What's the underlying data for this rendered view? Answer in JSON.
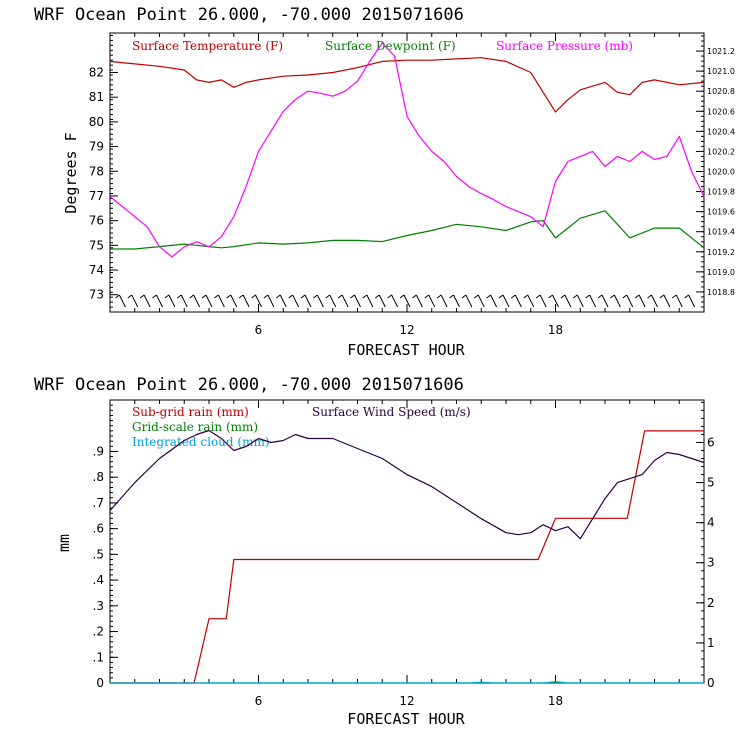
{
  "chart_data": [
    {
      "type": "line",
      "title": "WRF   Ocean Point   26.000, -70.000  2015071606",
      "xlabel": "FORECAST HOUR",
      "ylabel": "Degrees F",
      "xlim": [
        0,
        24
      ],
      "x_ticks": [
        "6",
        "12",
        "18"
      ],
      "ylim": [
        72.3,
        83.6
      ],
      "y_ticks": [
        "73",
        "74",
        "75",
        "76",
        "77",
        "78",
        "79",
        "80",
        "81",
        "82"
      ],
      "y2lim": [
        1018.6,
        1021.38
      ],
      "y2_ticks": [
        "1018.8",
        "1019.0",
        "1019.2",
        "1019.4",
        "1019.6",
        "1019.8",
        "1020.0",
        "1020.2",
        "1020.4",
        "1020.6",
        "1020.8",
        "1021.0",
        "1021.2"
      ],
      "series": [
        {
          "name": "Surface Temperature (F)",
          "axis": "left",
          "color": "#c00000",
          "x": [
            0,
            1,
            2,
            3,
            3.5,
            4,
            4.5,
            5,
            5.5,
            6,
            7,
            8,
            9,
            10,
            11,
            12,
            13,
            14,
            15,
            16,
            17,
            17.5,
            18,
            18.5,
            19,
            20,
            20.5,
            21,
            21.5,
            22,
            23,
            24
          ],
          "y": [
            82.45,
            82.35,
            82.25,
            82.1,
            81.7,
            81.6,
            81.7,
            81.4,
            81.6,
            81.7,
            81.85,
            81.9,
            82.0,
            82.2,
            82.45,
            82.5,
            82.5,
            82.55,
            82.6,
            82.45,
            82.0,
            81.2,
            80.4,
            80.9,
            81.3,
            81.6,
            81.2,
            81.1,
            81.6,
            81.7,
            81.5,
            81.6
          ]
        },
        {
          "name": "Surface Dewpoint (F)",
          "axis": "left",
          "color": "#008000",
          "x": [
            0,
            1,
            2,
            3,
            3.5,
            4,
            4.5,
            5,
            6,
            7,
            8,
            9,
            10,
            11,
            12,
            13,
            14,
            15,
            16,
            17,
            17.5,
            18,
            18.5,
            19,
            20,
            21,
            22,
            23,
            24
          ],
          "y": [
            74.85,
            74.85,
            74.95,
            75.05,
            75.0,
            74.95,
            74.9,
            74.95,
            75.1,
            75.05,
            75.1,
            75.2,
            75.2,
            75.15,
            75.4,
            75.6,
            75.85,
            75.75,
            75.6,
            75.95,
            76.0,
            75.3,
            75.7,
            76.1,
            76.4,
            75.3,
            75.7,
            75.7,
            74.9
          ]
        },
        {
          "name": "Surface Pressure (mb)",
          "axis": "right",
          "color": "#ff00ff",
          "x": [
            0,
            0.5,
            1,
            1.5,
            2,
            2.5,
            3,
            3.5,
            4,
            4.5,
            5,
            5.5,
            6,
            7,
            7.5,
            8,
            8.5,
            9,
            9.5,
            10,
            10.5,
            11,
            11.5,
            12,
            12.5,
            13,
            13.5,
            14,
            14.5,
            15,
            15.5,
            16,
            16.5,
            17,
            17.5,
            18,
            18.5,
            19,
            19.5,
            20,
            20.5,
            21,
            21.5,
            22,
            22.5,
            23,
            23.5,
            24
          ],
          "y": [
            1019.75,
            1019.65,
            1019.55,
            1019.45,
            1019.25,
            1019.15,
            1019.25,
            1019.3,
            1019.25,
            1019.35,
            1019.55,
            1019.85,
            1020.2,
            1020.6,
            1020.72,
            1020.8,
            1020.78,
            1020.75,
            1020.8,
            1020.9,
            1021.1,
            1021.28,
            1021.15,
            1020.55,
            1020.35,
            1020.2,
            1020.1,
            1019.95,
            1019.85,
            1019.78,
            1019.72,
            1019.65,
            1019.6,
            1019.55,
            1019.45,
            1019.9,
            1020.1,
            1020.15,
            1020.2,
            1020.05,
            1020.15,
            1020.1,
            1020.2,
            1020.12,
            1020.15,
            1020.35,
            1020.0,
            1019.75
          ]
        }
      ],
      "annotation": "wind barbs along bottom axis"
    },
    {
      "type": "line",
      "title": "WRF   Ocean Point   26.000, -70.000  2015071606",
      "xlabel": "FORECAST HOUR",
      "ylabel": "mm",
      "xlim": [
        0,
        24
      ],
      "x_ticks": [
        "6",
        "12",
        "18"
      ],
      "ylim": [
        0,
        1.1
      ],
      "y_ticks": [
        "0",
        ".1",
        ".2",
        ".3",
        ".4",
        ".5",
        ".6",
        ".7",
        ".8",
        ".9"
      ],
      "y2lim": [
        0,
        7.06
      ],
      "y2_ticks": [
        "0",
        "1",
        "2",
        "3",
        "4",
        "5",
        "6"
      ],
      "series": [
        {
          "name": "Sub-grid rain (mm)",
          "axis": "left",
          "color": "#c00000",
          "x": [
            0,
            3.4,
            4.0,
            4.4,
            4.4,
            4.7,
            5.0,
            17.3,
            18.0,
            20.9,
            21.6,
            24
          ],
          "y": [
            0,
            0,
            0.25,
            0.25,
            0.25,
            0.25,
            0.48,
            0.48,
            0.64,
            0.64,
            0.98,
            0.98
          ]
        },
        {
          "name": "Grid-scale rain (mm)",
          "axis": "left",
          "color": "#008000",
          "x": [
            0,
            24
          ],
          "y": [
            0,
            0
          ]
        },
        {
          "name": "Integrated cloud (mm)",
          "axis": "left",
          "color": "#00a0e0",
          "x": [
            0,
            14.5,
            15,
            15.5,
            17.5,
            18,
            18.5,
            24
          ],
          "y": [
            0,
            0,
            0.003,
            0,
            0,
            0.005,
            0,
            0
          ]
        },
        {
          "name": "Surface Wind Speed (m/s)",
          "axis": "right",
          "color": "#2a0040",
          "x": [
            0,
            1,
            2,
            3,
            3.5,
            4,
            4.5,
            5,
            5.5,
            6,
            6.5,
            7,
            7.5,
            8,
            9,
            10,
            11,
            12,
            13,
            14,
            15,
            16,
            16.5,
            17,
            17.5,
            18,
            18.5,
            19,
            20,
            20.5,
            21,
            21.5,
            22,
            22.5,
            23,
            24
          ],
          "y": [
            4.3,
            5.0,
            5.6,
            6.05,
            6.2,
            6.3,
            6.1,
            5.8,
            5.9,
            6.1,
            6.0,
            6.05,
            6.2,
            6.1,
            6.1,
            5.85,
            5.6,
            5.2,
            4.9,
            4.5,
            4.1,
            3.75,
            3.7,
            3.75,
            3.95,
            3.8,
            3.9,
            3.6,
            4.6,
            5.0,
            5.1,
            5.2,
            5.55,
            5.75,
            5.7,
            5.5
          ]
        }
      ]
    }
  ]
}
